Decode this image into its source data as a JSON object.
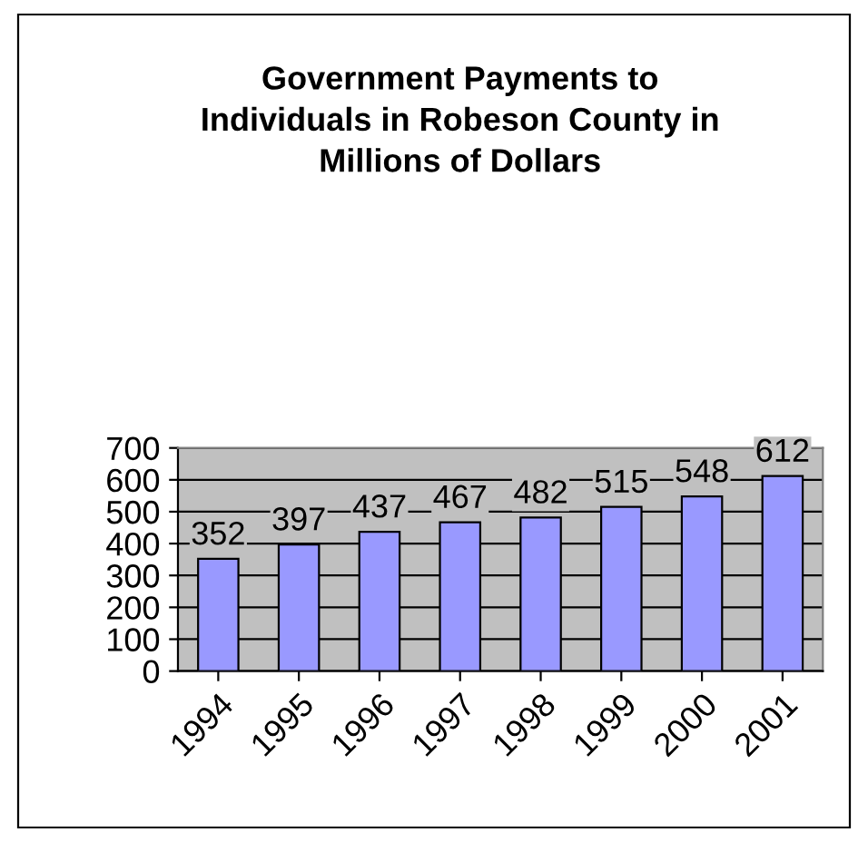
{
  "chart_data": {
    "type": "bar",
    "title": "Government Payments to\nIndividuals in Robeson County in\nMillions of Dollars",
    "categories": [
      "1994",
      "1995",
      "1996",
      "1997",
      "1998",
      "1999",
      "2000",
      "2001"
    ],
    "values": [
      352,
      397,
      437,
      467,
      482,
      515,
      548,
      612
    ],
    "color": "#9999ff",
    "ylim": [
      0,
      700
    ],
    "yticks": [
      0,
      100,
      200,
      300,
      400,
      500,
      600,
      700
    ],
    "grid": "y",
    "data_labels": true
  }
}
